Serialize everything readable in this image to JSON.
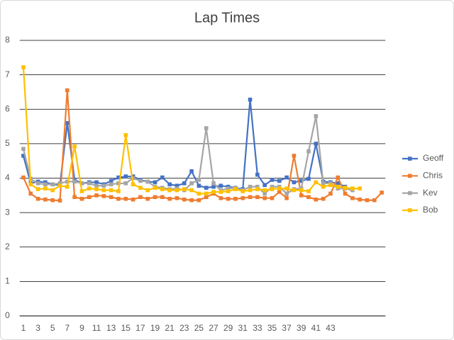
{
  "chart_data": {
    "type": "line",
    "title": "Lap Times",
    "categories": [
      "1",
      null,
      "3",
      null,
      "5",
      null,
      "7",
      null,
      "9",
      null,
      "11",
      null,
      "13",
      null,
      "15",
      null,
      "17",
      null,
      "19",
      null,
      "21",
      null,
      "23",
      null,
      "25",
      null,
      "27",
      null,
      "29",
      null,
      "31",
      null,
      "33",
      null,
      "35",
      null,
      "37",
      null,
      "39",
      null,
      "41",
      null,
      "43",
      null,
      null,
      null,
      null,
      null,
      null,
      null
    ],
    "series": [
      {
        "name": "Geoff",
        "color": "#4472c4",
        "values": [
          4.65,
          3.85,
          3.9,
          3.88,
          3.82,
          3.8,
          5.6,
          3.95,
          3.85,
          3.88,
          3.88,
          3.82,
          3.92,
          4.02,
          4.05,
          4.05,
          3.95,
          3.9,
          3.88,
          4.02,
          3.82,
          3.78,
          3.85,
          4.2,
          3.78,
          3.72,
          3.75,
          3.78,
          3.75,
          3.72,
          3.68,
          6.28,
          4.1,
          3.8,
          3.95,
          3.92,
          4.02,
          3.88,
          3.92,
          3.98,
          5.0,
          3.9,
          3.88,
          3.85,
          3.75,
          null,
          null,
          null,
          null,
          null
        ]
      },
      {
        "name": "Chris",
        "color": "#ed7d31",
        "values": [
          4.02,
          3.55,
          3.4,
          3.38,
          3.36,
          3.35,
          6.55,
          3.45,
          3.4,
          3.45,
          3.5,
          3.48,
          3.45,
          3.4,
          3.4,
          3.38,
          3.45,
          3.4,
          3.45,
          3.45,
          3.4,
          3.42,
          3.38,
          3.36,
          3.36,
          3.45,
          3.55,
          3.42,
          3.4,
          3.4,
          3.42,
          3.45,
          3.45,
          3.42,
          3.42,
          3.6,
          3.42,
          4.65,
          3.5,
          3.45,
          3.38,
          3.4,
          3.55,
          4.02,
          3.55,
          3.42,
          3.38,
          3.36,
          3.36,
          3.58
        ]
      },
      {
        "name": "Kev",
        "color": "#a5a5a5",
        "values": [
          4.85,
          3.98,
          3.85,
          3.82,
          3.82,
          3.85,
          3.9,
          3.9,
          3.85,
          3.85,
          3.78,
          3.78,
          3.82,
          3.85,
          3.85,
          4.0,
          3.92,
          3.9,
          3.75,
          3.72,
          3.68,
          3.7,
          3.65,
          3.85,
          3.95,
          5.45,
          3.85,
          3.65,
          3.7,
          3.72,
          3.65,
          3.75,
          3.75,
          3.55,
          3.75,
          3.75,
          3.55,
          3.68,
          3.7,
          4.78,
          5.8,
          3.85,
          3.85,
          3.7,
          3.7,
          3.65,
          null,
          null,
          null,
          null
        ]
      },
      {
        "name": "Bob",
        "color": "#ffc000",
        "values": [
          7.22,
          3.82,
          3.68,
          3.7,
          3.65,
          3.78,
          3.75,
          4.92,
          3.62,
          3.7,
          3.68,
          3.65,
          3.65,
          3.62,
          5.25,
          3.82,
          3.72,
          3.65,
          3.72,
          3.68,
          3.65,
          3.65,
          3.68,
          3.65,
          3.55,
          3.55,
          3.6,
          3.6,
          3.62,
          3.68,
          3.62,
          3.65,
          3.68,
          3.65,
          3.68,
          3.7,
          3.7,
          3.65,
          3.65,
          3.62,
          3.88,
          3.75,
          3.8,
          3.75,
          3.72,
          3.7,
          3.7,
          null,
          null,
          null
        ]
      }
    ],
    "ylim": [
      0,
      8
    ],
    "yticks": [
      0,
      1,
      2,
      3,
      4,
      5,
      6,
      7,
      8
    ],
    "grid": true,
    "legend": "right"
  }
}
